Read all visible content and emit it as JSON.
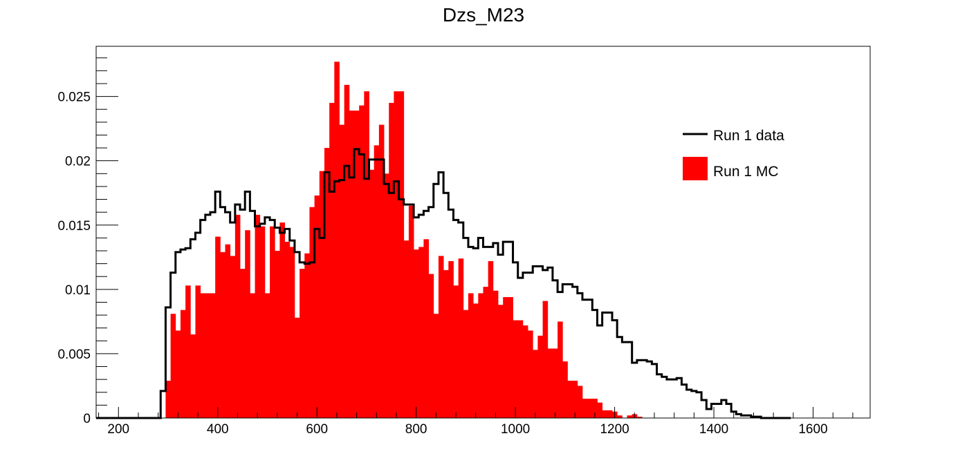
{
  "chart_data": {
    "type": "histogram",
    "title": "Dzs_M23",
    "xlabel": "",
    "ylabel": "",
    "xlim": [
      155,
      1715
    ],
    "ylim": [
      0,
      0.0289
    ],
    "x_ticks": [
      200,
      400,
      600,
      800,
      1000,
      1200,
      1400,
      1600
    ],
    "y_ticks": [
      0,
      0.005,
      0.01,
      0.015,
      0.02,
      0.025
    ],
    "y_tick_labels": [
      "0",
      "0.005",
      "0.01",
      "0.015",
      "0.02",
      "0.025"
    ],
    "grid": false,
    "legend_position": "top-right",
    "bin_start": 155,
    "bin_width": 10,
    "series": [
      {
        "name": "Run 1 data",
        "style": "step-line",
        "color": "#000000",
        "values": [
          0,
          0,
          0,
          0,
          0,
          0,
          0,
          0,
          0,
          0,
          0,
          0,
          0,
          0.0021,
          0.0086,
          0.0113,
          0.0129,
          0.0131,
          0.0132,
          0.0139,
          0.0144,
          0.0154,
          0.0158,
          0.016,
          0.0176,
          0.0164,
          0.016,
          0.0152,
          0.0166,
          0.0162,
          0.0176,
          0.0161,
          0.0149,
          0.0151,
          0.0156,
          0.0154,
          0.0148,
          0.0144,
          0.0147,
          0.0138,
          0.0129,
          0.0121,
          0.012,
          0.0121,
          0.0147,
          0.014,
          0.0191,
          0.0176,
          0.0184,
          0.0185,
          0.0196,
          0.0187,
          0.0209,
          0.0205,
          0.0186,
          0.0201,
          0.0201,
          0.0201,
          0.0182,
          0.0175,
          0.0184,
          0.017,
          0.0166,
          0.0166,
          0.0156,
          0.0158,
          0.0161,
          0.0164,
          0.0182,
          0.0191,
          0.0175,
          0.0162,
          0.0154,
          0.0152,
          0.014,
          0.0133,
          0.0132,
          0.014,
          0.0133,
          0.0133,
          0.0136,
          0.0127,
          0.0137,
          0.0137,
          0.0121,
          0.0109,
          0.0113,
          0.0113,
          0.0118,
          0.0118,
          0.0115,
          0.0117,
          0.0107,
          0.0098,
          0.0104,
          0.0104,
          0.0102,
          0.0097,
          0.0092,
          0.0092,
          0.0084,
          0.0072,
          0.0082,
          0.0082,
          0.0076,
          0.0063,
          0.0059,
          0.0059,
          0.0043,
          0.0045,
          0.0045,
          0.0044,
          0.0042,
          0.0034,
          0.0032,
          0.003,
          0.003,
          0.0031,
          0.0026,
          0.0022,
          0.0021,
          0.002,
          0.0014,
          0.0007,
          0.0011,
          0.0011,
          0.0014,
          0.0011,
          0.0005,
          0.0003,
          0.0002,
          0.0002,
          0.0001,
          0.0001,
          0,
          0,
          0,
          0,
          0,
          0
        ]
      },
      {
        "name": "Run 1 MC",
        "style": "filled-bars",
        "color": "#ff0000",
        "values": [
          0,
          0,
          0,
          0,
          0,
          0,
          0,
          0,
          0,
          0,
          0,
          0,
          0,
          0,
          0.0029,
          0.0081,
          0.0068,
          0.0084,
          0.0103,
          0.0065,
          0.0103,
          0.0097,
          0.0097,
          0.0097,
          0.0141,
          0.0129,
          0.0135,
          0.0126,
          0.0158,
          0.0116,
          0.0146,
          0.0097,
          0.0158,
          0.0149,
          0.0097,
          0.0149,
          0.013,
          0.0152,
          0.0137,
          0.0133,
          0.0078,
          0.0116,
          0.0128,
          0.0164,
          0.0173,
          0.0192,
          0.021,
          0.0245,
          0.0277,
          0.0228,
          0.0259,
          0.0239,
          0.0239,
          0.0243,
          0.0254,
          0.0193,
          0.0212,
          0.0228,
          0.019,
          0.0245,
          0.0254,
          0.0254,
          0.0138,
          0.0165,
          0.0131,
          0.0133,
          0.0139,
          0.0112,
          0.0081,
          0.0126,
          0.0115,
          0.0122,
          0.0103,
          0.0124,
          0.0084,
          0.0097,
          0.0089,
          0.0097,
          0.0102,
          0.0122,
          0.0099,
          0.0088,
          0.0094,
          0.0094,
          0.0076,
          0.0076,
          0.0072,
          0.0068,
          0.0053,
          0.0064,
          0.0091,
          0.0054,
          0.0054,
          0.0075,
          0.0044,
          0.0029,
          0.0029,
          0.0025,
          0.0015,
          0.0015,
          0.0015,
          0.0012,
          0.0006,
          0.0006,
          0.0005,
          0.0002,
          0,
          0.0002,
          0.0003,
          0.0001,
          0,
          0,
          0,
          0,
          0,
          0,
          0,
          0,
          0,
          0,
          0,
          0,
          0,
          0,
          0,
          0,
          0,
          0,
          0,
          0,
          0,
          0,
          0,
          0,
          0,
          0,
          0,
          0,
          0,
          0,
          0
        ]
      }
    ]
  }
}
